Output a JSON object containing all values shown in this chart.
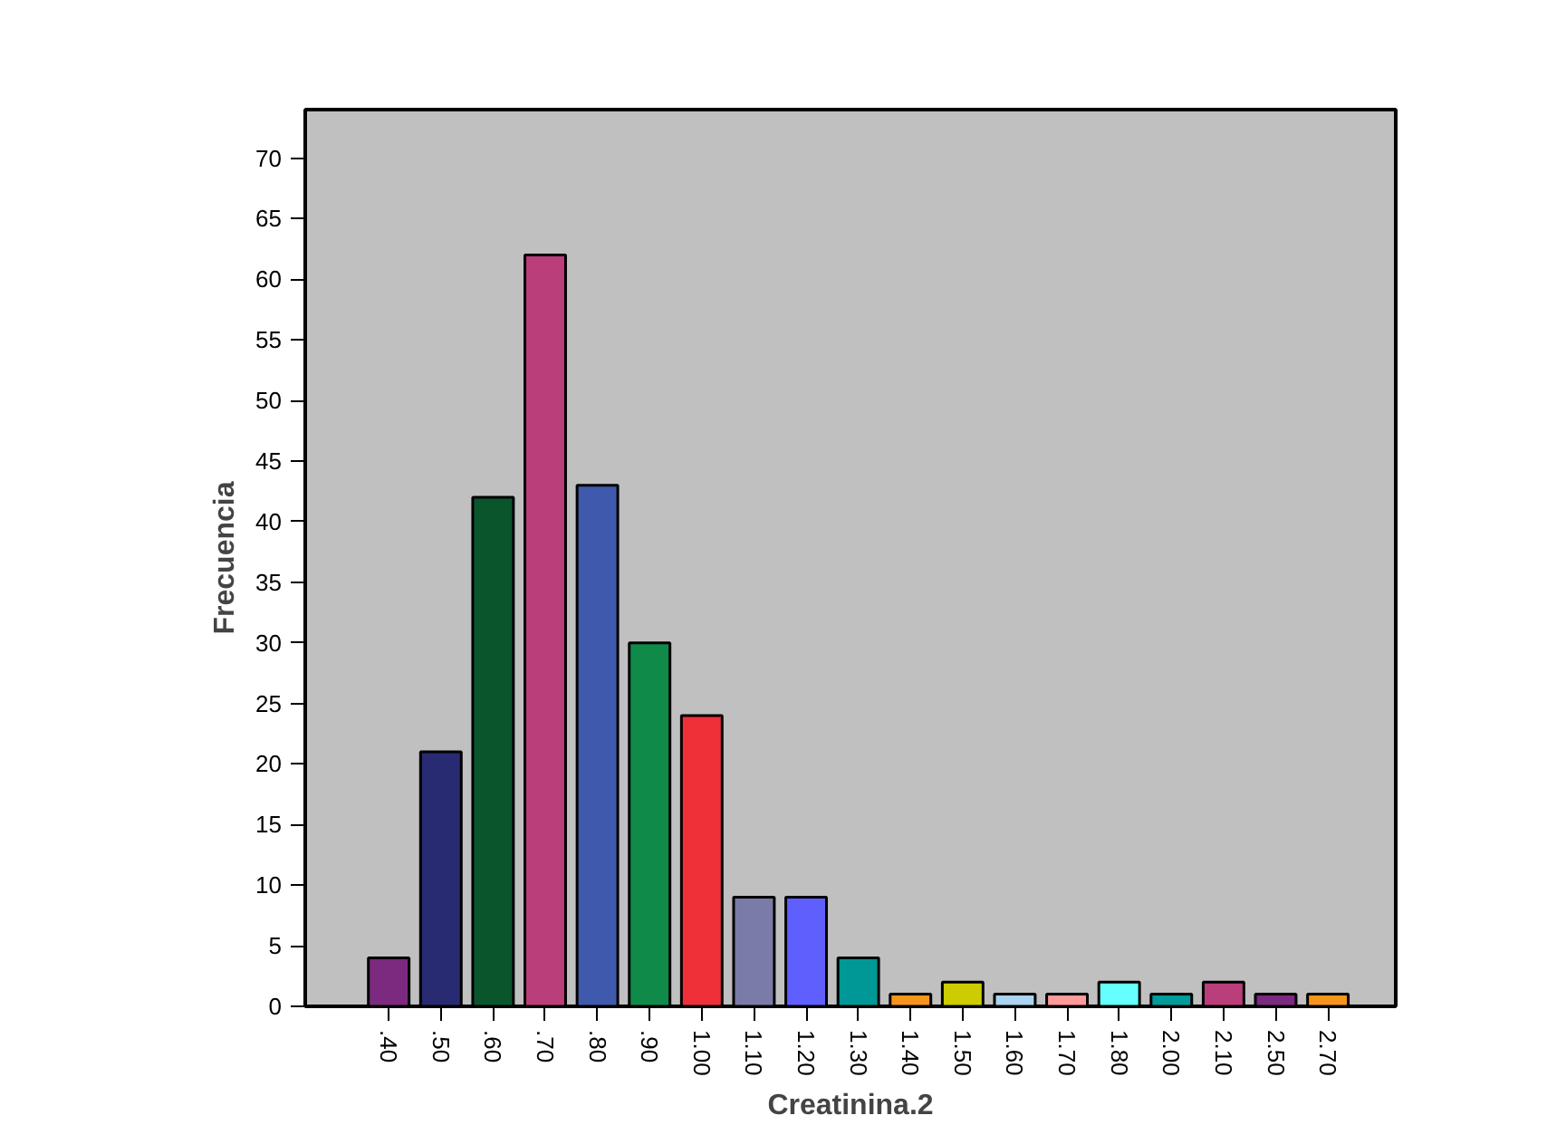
{
  "chart_data": {
    "type": "bar",
    "xlabel": "Creatinina.2",
    "ylabel": "Frecuencia",
    "categories": [
      ".40",
      ".50",
      ".60",
      ".70",
      ".80",
      ".90",
      "1.00",
      "1.10",
      "1.20",
      "1.30",
      "1.40",
      "1.50",
      "1.60",
      "1.70",
      "1.80",
      "2.00",
      "2.10",
      "2.50",
      "2.70"
    ],
    "values": [
      4,
      21,
      42,
      62,
      43,
      30,
      24,
      9,
      9,
      4,
      1,
      2,
      1,
      1,
      2,
      1,
      2,
      1,
      1
    ],
    "colors": [
      "#7b2a7f",
      "#282a72",
      "#0a552c",
      "#b93e7a",
      "#3f5aac",
      "#0f8a48",
      "#ef3038",
      "#7b7ba8",
      "#5f5ffe",
      "#009896",
      "#f7941d",
      "#cccc00",
      "#aad4f0",
      "#ff9a9a",
      "#66ffff",
      "#009b9b",
      "#b93e7a",
      "#7b2a7f",
      "#f7941d"
    ],
    "ylim": [
      0,
      74
    ],
    "yticks": [
      0,
      5,
      10,
      15,
      20,
      25,
      30,
      35,
      40,
      45,
      50,
      55,
      60,
      65,
      70
    ],
    "grid": false
  }
}
